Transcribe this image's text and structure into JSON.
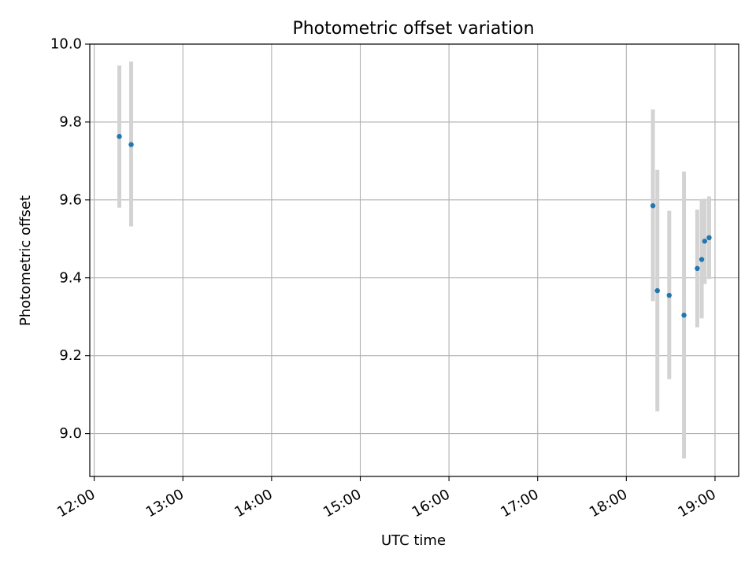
{
  "chart_data": {
    "type": "scatter",
    "title": "Photometric offset variation",
    "xlabel": "UTC time",
    "ylabel": "Photometric offset",
    "x_ticks": [
      "12:00",
      "13:00",
      "14:00",
      "15:00",
      "16:00",
      "17:00",
      "18:00",
      "19:00"
    ],
    "y_ticks": [
      "9.0",
      "9.2",
      "9.4",
      "9.6",
      "9.8",
      "10.0"
    ],
    "xlim": [
      "11:57",
      "19:16"
    ],
    "ylim": [
      8.89,
      10.0
    ],
    "grid": true,
    "marker_color": "#1f77b4",
    "errorbar_color": "#d3d3d3",
    "points": [
      {
        "time": "12:17",
        "y": 9.763,
        "ylo": 9.58,
        "yhi": 9.945
      },
      {
        "time": "12:25",
        "y": 9.742,
        "ylo": 9.532,
        "yhi": 9.955
      },
      {
        "time": "18:18",
        "y": 9.585,
        "ylo": 9.34,
        "yhi": 9.832
      },
      {
        "time": "18:21",
        "y": 9.367,
        "ylo": 9.057,
        "yhi": 9.677
      },
      {
        "time": "18:29",
        "y": 9.355,
        "ylo": 9.14,
        "yhi": 9.572
      },
      {
        "time": "18:39",
        "y": 9.304,
        "ylo": 8.936,
        "yhi": 9.673
      },
      {
        "time": "18:48",
        "y": 9.424,
        "ylo": 9.273,
        "yhi": 9.575
      },
      {
        "time": "18:51",
        "y": 9.447,
        "ylo": 9.296,
        "yhi": 9.6
      },
      {
        "time": "18:53",
        "y": 9.494,
        "ylo": 9.384,
        "yhi": 9.603
      },
      {
        "time": "18:56",
        "y": 9.503,
        "ylo": 9.397,
        "yhi": 9.609
      }
    ]
  }
}
